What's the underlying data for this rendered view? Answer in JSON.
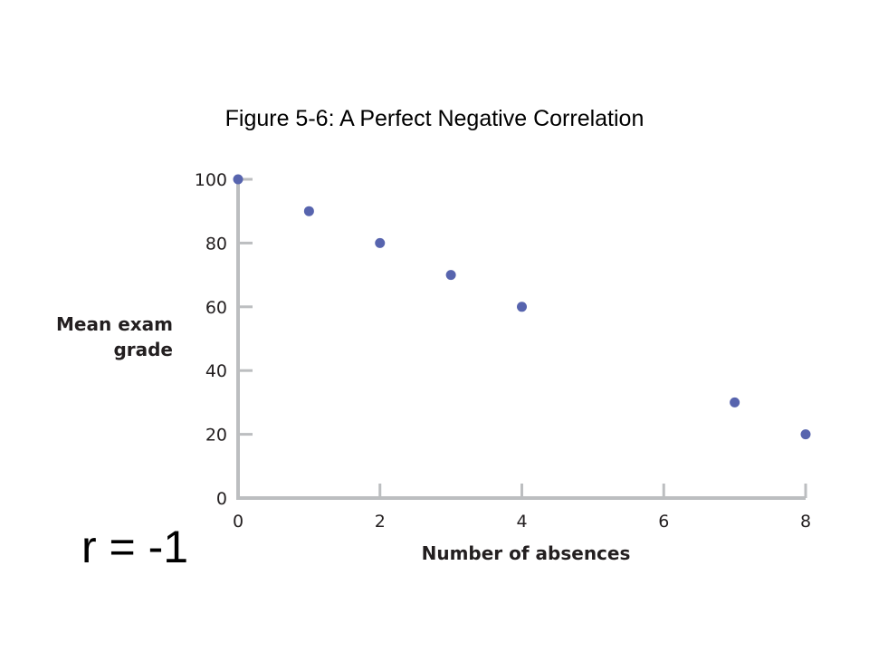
{
  "chart_data": {
    "type": "scatter",
    "title": "Figure 5-6: A Perfect Negative Correlation",
    "xlabel": "Number of absences",
    "ylabel_lines": [
      "Mean exam",
      "grade"
    ],
    "annotation": "r = -1",
    "xlim": [
      0,
      8
    ],
    "ylim": [
      0,
      100
    ],
    "x_ticks": [
      0,
      2,
      4,
      6,
      8
    ],
    "y_ticks": [
      0,
      20,
      40,
      60,
      80,
      100
    ],
    "grid": false,
    "points": [
      {
        "x": 0,
        "y": 100
      },
      {
        "x": 1,
        "y": 90
      },
      {
        "x": 2,
        "y": 80
      },
      {
        "x": 3,
        "y": 70
      },
      {
        "x": 4,
        "y": 60
      },
      {
        "x": 7,
        "y": 30
      },
      {
        "x": 8,
        "y": 20
      }
    ],
    "colors": {
      "point": "#5764ae",
      "axis": "#bcbec0",
      "text": "#231f20"
    }
  }
}
